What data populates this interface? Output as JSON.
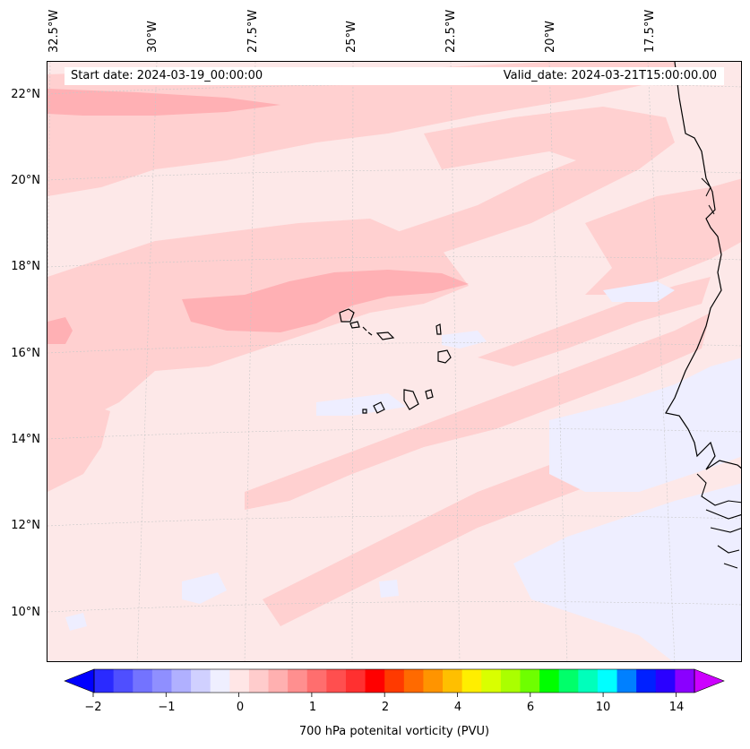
{
  "header": {
    "start_date": "Start date: 2024-03-19_00:00:00",
    "valid_date": "Valid_date: 2024-03-21T15:00:00.00"
  },
  "axes": {
    "lon_labels": [
      "32.5°W",
      "30°W",
      "27.5°W",
      "25°W",
      "22.5°W",
      "20°W",
      "17.5°W"
    ],
    "lat_labels": [
      "22°N",
      "20°N",
      "18°N",
      "16°N",
      "14°N",
      "12°N",
      "10°N"
    ]
  },
  "colorbar": {
    "label": "700 hPa potenital vorticity (PVU)",
    "tick_labels": [
      "−2",
      "−1",
      "0",
      "1",
      "2",
      "4",
      "6",
      "10",
      "14"
    ],
    "colors": [
      "#0000ff",
      "#2a2aff",
      "#4f4fff",
      "#7373ff",
      "#8f8fff",
      "#b0b0ff",
      "#d0d0ff",
      "#efefff",
      "#ffe6e6",
      "#ffcccc",
      "#ffb0b0",
      "#ff8f8f",
      "#ff6e6e",
      "#ff4f4f",
      "#ff3030",
      "#ff0000",
      "#ff3a00",
      "#ff6a00",
      "#ff9400",
      "#ffbf00",
      "#ffee00",
      "#d9ff00",
      "#aaff00",
      "#6eff00",
      "#00ff00",
      "#00ff6a",
      "#00ffbb",
      "#00ffff",
      "#0080ff",
      "#0020ff",
      "#2a00ff",
      "#8a00ff",
      "#cc00ff"
    ]
  },
  "map_colors": {
    "background": "#fde8e8",
    "pale_pink": "#fde8e8",
    "pink": "#ffd0d0",
    "deep_pink": "#ffb0b4",
    "pale_blue": "#eeeeff",
    "coast": "#000000"
  }
}
